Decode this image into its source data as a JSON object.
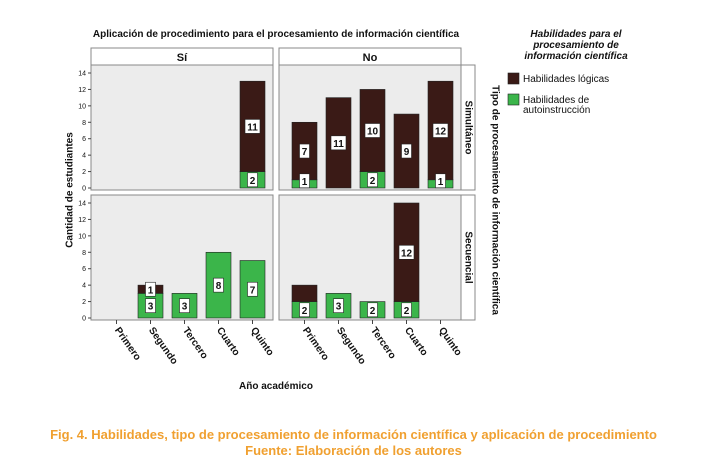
{
  "chart_data": {
    "type": "bar",
    "stacked": true,
    "title": "Aplicación de procedimiento para el  procesamiento de información científica",
    "xlabel": "Año académico",
    "ylabel": "Cantidad de estudiantes",
    "row_axis_label": "Tipo de procesamiento de información científica",
    "legend_title": "Habilidades para el procesamiento de información científica",
    "legend_title_lines": [
      "Habilidades para el",
      "procesamiento de",
      "información científica"
    ],
    "columns": [
      "Sí",
      "No"
    ],
    "rows": [
      "Simultáneo",
      "Secuencial"
    ],
    "categories": [
      "Primero",
      "Segundo",
      "Tercero",
      "Cuarto",
      "Quinto"
    ],
    "ylim": [
      0,
      14
    ],
    "yticks": [
      0,
      2,
      4,
      6,
      8,
      10,
      12,
      14
    ],
    "legend": [
      {
        "name": "Habilidades lógicas",
        "lines": [
          "Habilidades lógicas"
        ],
        "color": "#3a1a16"
      },
      {
        "name": "Habilidades de autoinstrucción",
        "lines": [
          "Habilidades de",
          "autoinstrucción"
        ],
        "color": "#3bb54a"
      }
    ],
    "panels": [
      {
        "row": "Simultáneo",
        "col": "Sí",
        "logicas": [
          0,
          0,
          0,
          0,
          11
        ],
        "autoinstruccion": [
          0,
          0,
          0,
          0,
          2
        ],
        "labels_logicas": [
          "",
          "",
          "",
          "",
          "11"
        ],
        "labels_autoinstruccion": [
          "",
          "",
          "",
          "",
          "2"
        ]
      },
      {
        "row": "Simultáneo",
        "col": "No",
        "logicas": [
          7,
          11,
          10,
          9,
          12
        ],
        "autoinstruccion": [
          1,
          0,
          2,
          0,
          1
        ],
        "labels_logicas": [
          "7",
          "11",
          "10",
          "9",
          "12"
        ],
        "labels_autoinstruccion": [
          "1",
          "",
          "2",
          "",
          "1"
        ]
      },
      {
        "row": "Secuencial",
        "col": "Sí",
        "logicas": [
          0,
          1,
          0,
          0,
          0
        ],
        "autoinstruccion": [
          0,
          3,
          3,
          8,
          7
        ],
        "labels_logicas": [
          "",
          "1",
          "",
          "",
          ""
        ],
        "labels_autoinstruccion": [
          "",
          "3",
          "3",
          "8",
          "7"
        ]
      },
      {
        "row": "Secuencial",
        "col": "No",
        "logicas": [
          2,
          0,
          0,
          12,
          0
        ],
        "autoinstruccion": [
          2,
          3,
          2,
          2,
          0
        ],
        "labels_logicas": [
          "",
          "",
          "",
          "12",
          ""
        ],
        "labels_autoinstruccion": [
          "2",
          "3",
          "2",
          "2",
          ""
        ]
      }
    ]
  },
  "caption": {
    "line1": "Fig. 4. Habilidades, tipo de procesamiento de información científica y aplicación de procedimiento",
    "line2": "Fuente: Elaboración de los autores"
  }
}
